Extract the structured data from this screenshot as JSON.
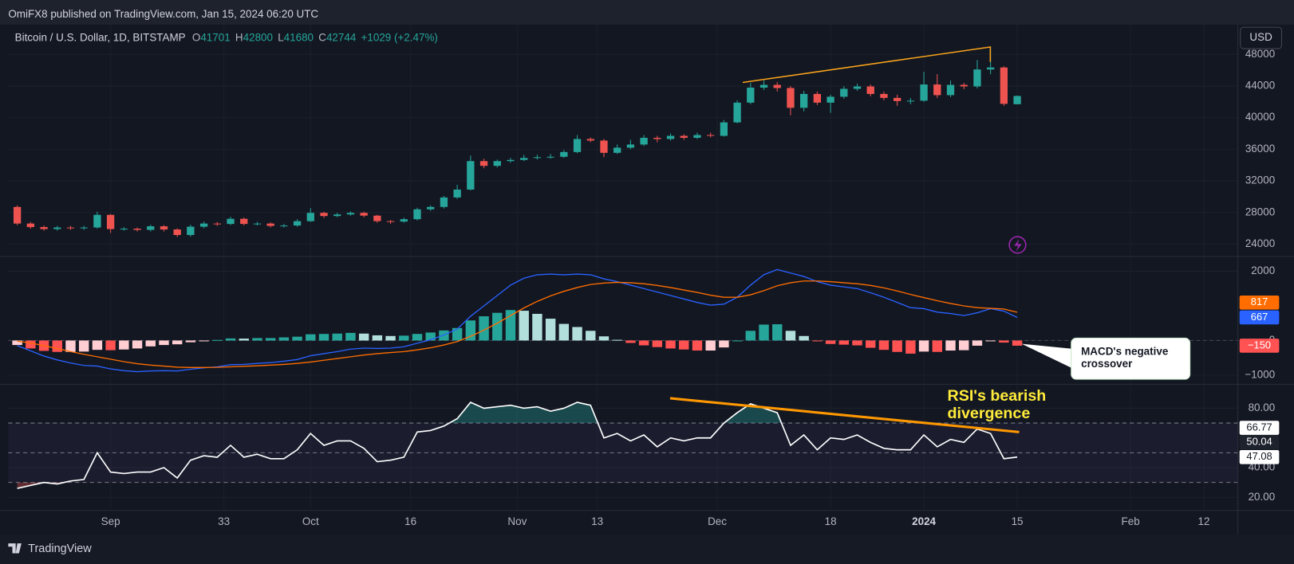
{
  "header": {
    "published_by": "OmiFX8 published on TradingView.com, Jan 15, 2024 06:20 UTC",
    "currency": "USD"
  },
  "footer": {
    "brand": "TradingView"
  },
  "annotations": {
    "macd": [
      "MACD's negative",
      "crossover"
    ],
    "rsi": [
      "RSI's bearish",
      "divergence"
    ]
  },
  "chart_data": [
    {
      "type": "candlestick",
      "symbol": "Bitcoin / U.S. Dollar, 1D, BITSTAMP",
      "ohlc_labels": [
        "O",
        "H",
        "L",
        "C"
      ],
      "change": "+1029 (+2.47%)",
      "up_color": "#26a69a",
      "down_color": "#ef5350",
      "grid": true,
      "xlim": [
        0.65,
        185.1
      ],
      "x": [
        2,
        4,
        6,
        8,
        10,
        12,
        14,
        16,
        18,
        20,
        22,
        24,
        26,
        28,
        30,
        32,
        34,
        36,
        38,
        40,
        42,
        44,
        46,
        48,
        50,
        52,
        54,
        56,
        58,
        60,
        62,
        64,
        66,
        68,
        70,
        72,
        74,
        76,
        78,
        80,
        82,
        84,
        86,
        88,
        90,
        92,
        94,
        96,
        98,
        100,
        102,
        104,
        106,
        108,
        110,
        112,
        114,
        116,
        118,
        120,
        122,
        124,
        126,
        128,
        130,
        132,
        134,
        136,
        138,
        140,
        142,
        144,
        146,
        148,
        150,
        152
      ],
      "open": [
        28700,
        26600,
        26150,
        25900,
        26100,
        26000,
        26100,
        27700,
        25900,
        25950,
        25800,
        26250,
        25850,
        25150,
        26200,
        26600,
        26550,
        27200,
        26550,
        26600,
        26300,
        26350,
        26900,
        27950,
        27550,
        27750,
        27950,
        27600,
        26900,
        26850,
        27150,
        28400,
        28700,
        29900,
        30900,
        34500,
        33900,
        34500,
        34650,
        34900,
        35000,
        35050,
        35650,
        37300,
        37100,
        35550,
        36200,
        36600,
        37450,
        37300,
        37700,
        37450,
        37800,
        37700,
        39400,
        41900,
        43800,
        44150,
        43750,
        41250,
        43000,
        41900,
        42650,
        43650,
        43950,
        43000,
        42500,
        42100,
        42150,
        44200,
        42850,
        44150,
        43950,
        46100,
        46350,
        41701
      ],
      "high": [
        28900,
        26800,
        26350,
        26300,
        26300,
        26300,
        28100,
        27800,
        26150,
        26100,
        26450,
        26400,
        26000,
        26450,
        26850,
        26800,
        27450,
        27350,
        26800,
        26750,
        26550,
        27150,
        28550,
        28100,
        27950,
        28150,
        28100,
        27700,
        27050,
        27350,
        28600,
        28900,
        30100,
        31500,
        35200,
        34800,
        34700,
        34900,
        35300,
        35300,
        35400,
        35900,
        37800,
        37500,
        37300,
        36600,
        37200,
        37800,
        37700,
        38000,
        37900,
        38100,
        38100,
        39700,
        42200,
        44400,
        44700,
        44500,
        44000,
        43400,
        43300,
        42900,
        44000,
        44300,
        44200,
        43300,
        42900,
        42500,
        45800,
        45500,
        44700,
        44400,
        47300,
        48900,
        46500,
        42800
      ],
      "low": [
        26400,
        25950,
        25700,
        25700,
        25800,
        25800,
        25950,
        25400,
        25700,
        25600,
        25600,
        25600,
        24900,
        24950,
        26000,
        26300,
        26400,
        26350,
        26350,
        26100,
        26100,
        26200,
        26800,
        27300,
        27400,
        27600,
        27400,
        26700,
        26550,
        26700,
        27000,
        28200,
        28500,
        29700,
        30800,
        33600,
        33700,
        34300,
        34500,
        34700,
        34800,
        34900,
        35500,
        36900,
        35000,
        35400,
        36000,
        36400,
        36900,
        37100,
        37200,
        37300,
        37500,
        37600,
        39300,
        41700,
        43500,
        43300,
        40300,
        40800,
        41600,
        40600,
        42400,
        43400,
        42700,
        42200,
        41500,
        41700,
        42000,
        42500,
        42600,
        43600,
        43700,
        45500,
        41500,
        41680
      ],
      "close": [
        26600,
        26150,
        25900,
        26100,
        26000,
        26100,
        27700,
        25900,
        25950,
        25800,
        26250,
        25850,
        25150,
        26200,
        26600,
        26550,
        27200,
        26550,
        26600,
        26300,
        26350,
        26900,
        27950,
        27550,
        27750,
        27950,
        27600,
        26900,
        26850,
        27150,
        28400,
        28700,
        29900,
        30900,
        34500,
        33900,
        34500,
        34650,
        34900,
        35000,
        35050,
        35650,
        37300,
        37100,
        35550,
        36200,
        36600,
        37450,
        37300,
        37700,
        37450,
        37800,
        37700,
        39400,
        41900,
        43800,
        44150,
        43750,
        41250,
        43000,
        41900,
        42650,
        43650,
        43950,
        43000,
        42500,
        42100,
        42150,
        44200,
        42850,
        44150,
        43950,
        46100,
        46350,
        41750,
        42744
      ],
      "ylim": [
        22540,
        51760
      ],
      "yticks": [
        24000,
        28000,
        32000,
        36000,
        40000,
        44000,
        48000
      ]
    },
    {
      "type": "macd",
      "grid": true,
      "ylim": [
        -1240,
        2405
      ],
      "yticks": [
        {
          "value": -1000,
          "label": "−1000"
        },
        0,
        2000
      ],
      "series": [
        {
          "color": "#2962ff",
          "values": [
            -150,
            -300,
            -450,
            -560,
            -650,
            -720,
            -740,
            -820,
            -870,
            -900,
            -880,
            -870,
            -880,
            -830,
            -790,
            -760,
            -700,
            -690,
            -660,
            -640,
            -600,
            -550,
            -440,
            -380,
            -320,
            -250,
            -220,
            -230,
            -220,
            -180,
            -80,
            20,
            160,
            330,
            700,
            1000,
            1300,
            1600,
            1800,
            1900,
            1920,
            1900,
            1920,
            1900,
            1780,
            1700,
            1600,
            1500,
            1400,
            1300,
            1200,
            1100,
            1020,
            1050,
            1250,
            1600,
            1900,
            2050,
            1950,
            1850,
            1700,
            1600,
            1550,
            1500,
            1380,
            1250,
            1100,
            950,
            920,
            820,
            780,
            720,
            800,
            920,
            850,
            667
          ]
        },
        {
          "color": "#ff6d00",
          "values": [
            -20,
            -70,
            -150,
            -230,
            -320,
            -400,
            -470,
            -540,
            -610,
            -670,
            -710,
            -740,
            -770,
            -780,
            -780,
            -775,
            -760,
            -745,
            -730,
            -710,
            -690,
            -660,
            -620,
            -570,
            -520,
            -470,
            -420,
            -380,
            -350,
            -320,
            -270,
            -210,
            -130,
            -30,
            120,
            300,
            500,
            720,
            940,
            1130,
            1290,
            1420,
            1530,
            1620,
            1660,
            1680,
            1670,
            1640,
            1590,
            1530,
            1460,
            1390,
            1310,
            1250,
            1250,
            1320,
            1440,
            1580,
            1670,
            1720,
            1720,
            1700,
            1670,
            1640,
            1590,
            1520,
            1430,
            1330,
            1240,
            1150,
            1070,
            1000,
            950,
            930,
            910,
            817
          ]
        }
      ],
      "histogram": {
        "colors": [
          "#26a69a",
          "#b2dfdb",
          "#ff5252",
          "#ffcdd2"
        ],
        "last_label": "−150",
        "values": [
          -130,
          -230,
          -300,
          -330,
          -330,
          -320,
          -270,
          -280,
          -260,
          -230,
          -170,
          -130,
          -110,
          -50,
          -10,
          15,
          60,
          55,
          70,
          70,
          90,
          110,
          180,
          190,
          200,
          220,
          200,
          150,
          130,
          140,
          190,
          230,
          290,
          360,
          580,
          700,
          800,
          880,
          860,
          770,
          630,
          480,
          390,
          280,
          120,
          20,
          -70,
          -140,
          -190,
          -230,
          -260,
          -290,
          -290,
          -200,
          0,
          280,
          460,
          470,
          280,
          130,
          -20,
          -100,
          -120,
          -140,
          -210,
          -270,
          -330,
          -380,
          -320,
          -330,
          -290,
          -280,
          -150,
          -10,
          -60,
          -150
        ]
      }
    },
    {
      "type": "line",
      "grid": true,
      "ylim": [
        11.7,
        95.6
      ],
      "yticks": [
        {
          "value": 20,
          "label": "20.00"
        },
        {
          "value": 40,
          "label": "40.00"
        },
        {
          "value": 80,
          "label": "80.00"
        }
      ],
      "bands": [
        70,
        50,
        30
      ],
      "band_color": "#7e57c2",
      "overbought_color": "#26a69a",
      "oversold_color": "#ef5350",
      "markers": [
        66.77,
        50.04
      ],
      "series": [
        {
          "color": "#ffffff",
          "values": [
            26,
            28,
            30,
            29,
            31,
            32,
            50,
            37,
            36,
            37,
            37,
            40,
            33,
            45,
            48,
            47,
            55,
            47,
            49,
            46,
            46,
            52,
            63,
            55,
            58,
            58,
            53,
            44,
            45,
            47,
            64,
            65,
            68,
            73,
            84,
            80,
            81,
            82,
            80,
            81,
            78,
            80,
            84,
            82,
            60,
            63,
            58,
            62,
            54,
            60,
            58,
            60,
            60,
            70,
            77,
            83,
            80,
            77,
            55,
            62,
            52,
            60,
            59,
            62,
            57,
            53,
            52,
            52,
            62,
            54,
            59,
            57,
            66,
            63,
            46,
            47.08
          ]
        }
      ],
      "xticks": [
        {
          "value": 16,
          "label": "Sep"
        },
        33,
        {
          "value": 46,
          "label": "Oct"
        },
        {
          "value": 61,
          "label": "16"
        },
        {
          "value": 77,
          "label": "Nov"
        },
        {
          "value": 89,
          "label": "13"
        },
        {
          "value": 107,
          "label": "Dec"
        },
        {
          "value": 124,
          "label": "18"
        },
        {
          "value": 138,
          "label": "2024"
        },
        {
          "value": 152,
          "label": "15"
        },
        {
          "value": 169,
          "label": "Feb"
        },
        {
          "value": 180,
          "label": "12"
        }
      ]
    }
  ]
}
